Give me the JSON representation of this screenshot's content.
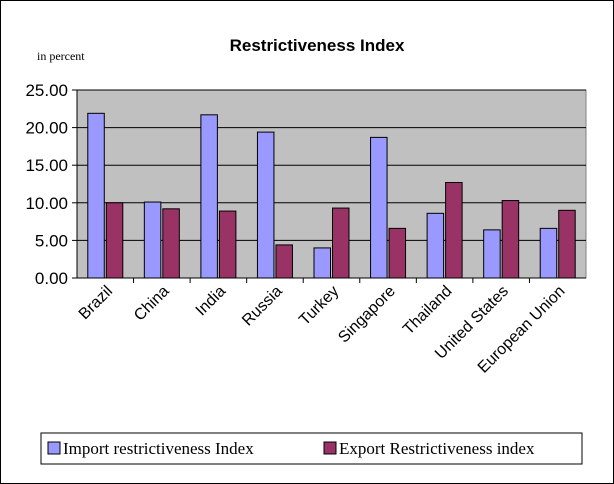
{
  "chart_data": {
    "type": "bar",
    "title": "Restrictiveness Index",
    "unit_label": "in percent",
    "categories": [
      "Brazil",
      "China",
      "India",
      "Russia",
      "Turkey",
      "Singapore",
      "Thailand",
      "United States",
      "European Union"
    ],
    "series": [
      {
        "name": "Import restrictiveness Index",
        "color": "#9999ff",
        "values": [
          21.9,
          10.1,
          21.7,
          19.4,
          4.0,
          18.7,
          8.6,
          6.4,
          6.6
        ]
      },
      {
        "name": "Export Restrictiveness index",
        "color": "#993366",
        "values": [
          10.0,
          9.2,
          8.9,
          4.4,
          9.3,
          6.6,
          12.7,
          10.3,
          9.0
        ]
      }
    ],
    "ylim": [
      0,
      25
    ],
    "yticks": [
      "0.00",
      "5.00",
      "10.00",
      "15.00",
      "20.00",
      "25.00"
    ],
    "plot_background": "#c0c0c0",
    "grid": true,
    "legend_position": "bottom"
  }
}
